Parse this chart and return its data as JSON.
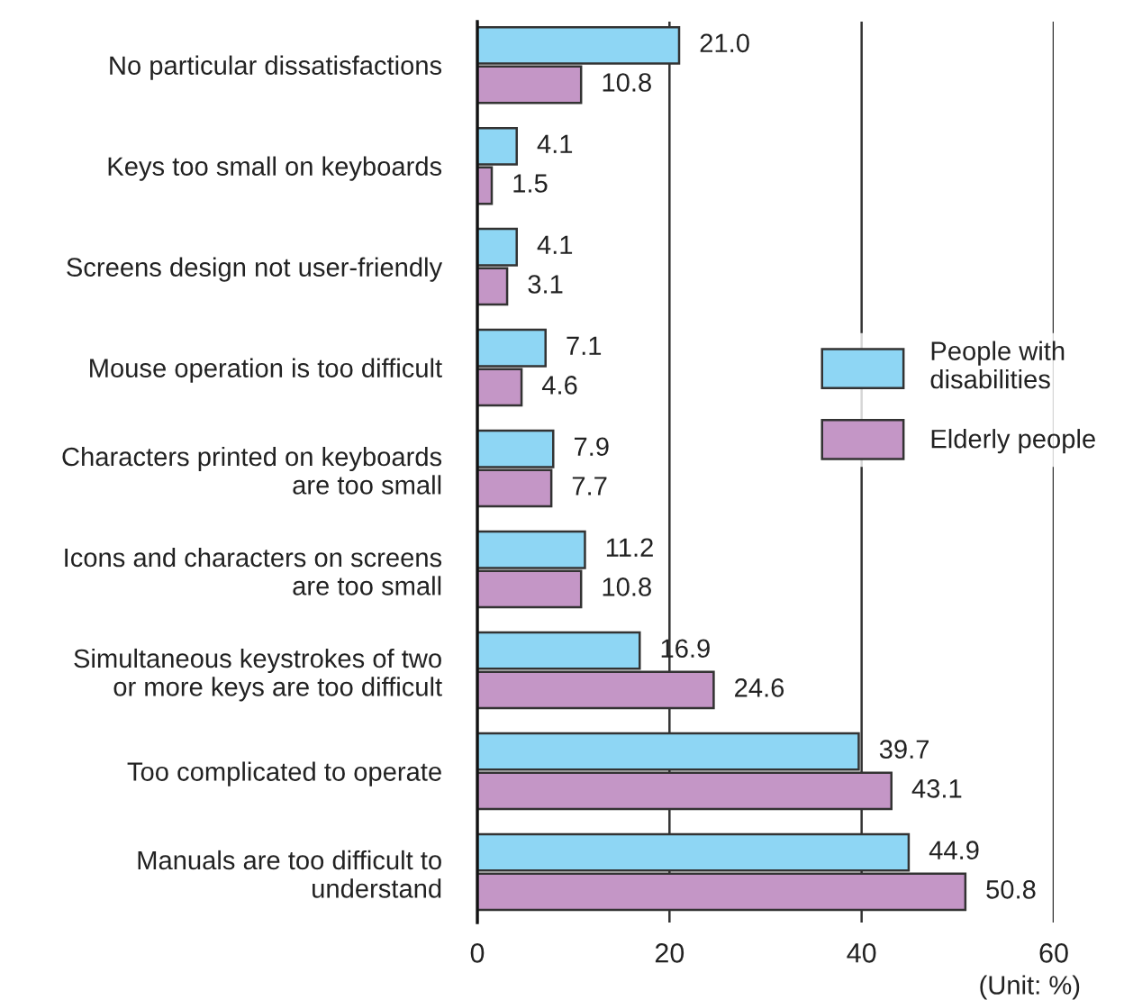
{
  "chart_data": {
    "type": "bar",
    "orientation": "horizontal",
    "categories": [
      "No particular dissatisfactions",
      "Keys too small on keyboards",
      "Screens design not user-friendly",
      "Mouse operation is too difficult",
      "Characters printed on keyboards\nare too small",
      "Icons and characters on screens\nare too small",
      "Simultaneous keystrokes of two\nor more keys are too difficult",
      "Too complicated to operate",
      "Manuals are too difficult to\nunderstand"
    ],
    "series": [
      {
        "name": "People with\ndisabilities",
        "color": "#8ed6f4",
        "values": [
          21.0,
          4.1,
          4.1,
          7.1,
          7.9,
          11.2,
          16.9,
          39.7,
          44.9
        ],
        "value_labels": [
          "21.0",
          "4.1",
          "4.1",
          "7.1",
          "7.9",
          "11.2",
          "16.9",
          "39.7",
          "44.9"
        ]
      },
      {
        "name": "Elderly people",
        "color": "#c496c6",
        "values": [
          10.8,
          1.5,
          3.1,
          4.6,
          7.7,
          10.8,
          24.6,
          43.1,
          50.8
        ],
        "value_labels": [
          "10.8",
          "1.5",
          "3.1",
          "4.6",
          "7.7",
          "10.8",
          "24.6",
          "43.1",
          "50.8"
        ]
      }
    ],
    "xlim": [
      0,
      60
    ],
    "xticks": [
      0,
      20,
      40,
      60
    ],
    "grid": "x",
    "legend": "right",
    "annotations": [
      "(Unit: %)"
    ]
  }
}
